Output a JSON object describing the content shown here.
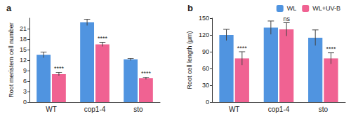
{
  "chart_data": [
    {
      "type": "bar",
      "title": "a",
      "y_label": "Root meristem cell number",
      "categories": [
        "WT",
        "cop1-4",
        "sto"
      ],
      "series": [
        {
          "name": "WL",
          "color": "#5094e0",
          "values": [
            13.5,
            22.8,
            12.2
          ],
          "errors": [
            0.8,
            0.9,
            0.3
          ]
        },
        {
          "name": "WL+UV-B",
          "color": "#f06292",
          "values": [
            8.0,
            16.5,
            6.8
          ],
          "errors": [
            0.5,
            0.6,
            0.3
          ],
          "annotations": [
            "****",
            "****",
            "****"
          ]
        }
      ],
      "ylim": [
        0,
        24
      ],
      "yticks": [
        0,
        3,
        6,
        9,
        12,
        15,
        18,
        21
      ],
      "grid": false
    },
    {
      "type": "bar",
      "title": "b",
      "y_label": "Root cell length (μm)",
      "categories": [
        "WT",
        "cop1-4",
        "sto"
      ],
      "series": [
        {
          "name": "WL",
          "color": "#5094e0",
          "values": [
            120,
            133,
            115
          ],
          "errors": [
            10,
            12,
            14
          ]
        },
        {
          "name": "WL+UV-B",
          "color": "#f06292",
          "values": [
            78,
            130,
            78
          ],
          "errors": [
            12,
            12,
            10
          ],
          "annotations": [
            "****",
            "ns",
            "****"
          ]
        }
      ],
      "ylim": [
        0,
        150
      ],
      "yticks": [
        0,
        30,
        60,
        90,
        120,
        150
      ],
      "grid": false,
      "legend": "upper right"
    }
  ]
}
